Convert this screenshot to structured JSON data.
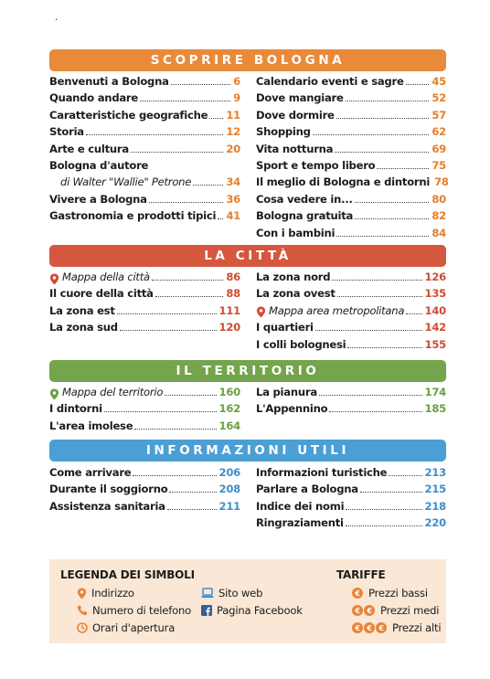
{
  "page_mark": ".",
  "sections": [
    {
      "id": "scoprire",
      "title": "SCOPRIRE BOLOGNA",
      "color": "#e98a3b",
      "left": [
        {
          "label": "Benvenuti a Bologna",
          "page": "6"
        },
        {
          "label": "Quando andare",
          "page": "9"
        },
        {
          "label": "Caratteristiche geografiche",
          "page": "11"
        },
        {
          "label": "Storia",
          "page": "12"
        },
        {
          "label": "Arte e cultura",
          "page": "20"
        },
        {
          "label": "Bologna d'autore",
          "page": ""
        },
        {
          "label": "di Walter \"Wallie\" Petrone",
          "page": "34"
        },
        {
          "label": "Vivere a Bologna",
          "page": "36"
        },
        {
          "label": "Gastronomia e prodotti tipici",
          "page": "41"
        }
      ],
      "right": [
        {
          "label": "Calendario eventi e sagre",
          "page": "45"
        },
        {
          "label": "Dove mangiare",
          "page": "52"
        },
        {
          "label": "Dove dormire",
          "page": "57"
        },
        {
          "label": "Shopping",
          "page": "62"
        },
        {
          "label": "Vita notturna",
          "page": "69"
        },
        {
          "label": "Sport e tempo libero",
          "page": "75"
        },
        {
          "label": "Il meglio di Bologna e dintorni",
          "page": "78"
        },
        {
          "label": "Cosa vedere in...",
          "page": "80"
        },
        {
          "label": "Bologna gratuita",
          "page": "82"
        },
        {
          "label": "Con i bambini",
          "page": "84"
        }
      ]
    },
    {
      "id": "citta",
      "title": "LA CITTÀ",
      "color": "#d4573e",
      "left": [
        {
          "label": "Mappa della città",
          "page": "86"
        },
        {
          "label": "Il cuore della città",
          "page": "88"
        },
        {
          "label": "La zona est",
          "page": "111"
        },
        {
          "label": "La zona sud",
          "page": "120"
        }
      ],
      "right": [
        {
          "label": "La zona nord",
          "page": "126"
        },
        {
          "label": "La zona ovest",
          "page": "135"
        },
        {
          "label": "Mappa area metropolitana",
          "page": "140"
        },
        {
          "label": "I quartieri",
          "page": "142"
        },
        {
          "label": "I colli bolognesi",
          "page": "155"
        }
      ]
    },
    {
      "id": "territorio",
      "title": "IL TERRITORIO",
      "color": "#74a44c",
      "left": [
        {
          "label": "Mappa del territorio",
          "page": "160"
        },
        {
          "label": "I dintorni",
          "page": "162"
        },
        {
          "label": "L'area imolese",
          "page": "164"
        }
      ],
      "right": [
        {
          "label": "La pianura",
          "page": "174"
        },
        {
          "label": "L'Appennino",
          "page": "185"
        }
      ]
    },
    {
      "id": "informazioni",
      "title": "INFORMAZIONI UTILI",
      "color": "#4c9fd4",
      "left": [
        {
          "label": "Come arrivare",
          "page": "206"
        },
        {
          "label": "Durante il soggiorno",
          "page": "208"
        },
        {
          "label": "Assistenza sanitaria",
          "page": "211"
        }
      ],
      "right": [
        {
          "label": "Informazioni turistiche",
          "page": "213"
        },
        {
          "label": "Parlare a Bologna",
          "page": "215"
        },
        {
          "label": "Indice dei nomi",
          "page": "218"
        },
        {
          "label": "Ringraziamenti",
          "page": "220"
        }
      ]
    }
  ],
  "legend": {
    "title": "LEGENDA DEI SIMBOLI",
    "items": [
      {
        "icon": "map-pin-icon",
        "label": "Indirizzo"
      },
      {
        "icon": "phone-icon",
        "label": "Numero di telefono"
      },
      {
        "icon": "clock-icon",
        "label": "Orari d'apertura"
      },
      {
        "icon": "laptop-icon",
        "label": "Sito web"
      },
      {
        "icon": "facebook-icon",
        "label": "Pagina Facebook"
      }
    ],
    "tariffe_title": "TARIFFE",
    "tariffe": [
      {
        "coins": "€",
        "label": "Prezzi bassi"
      },
      {
        "coins": "€€",
        "label": "Prezzi medi"
      },
      {
        "coins": "€€€",
        "label": "Prezzi alti"
      }
    ],
    "accent": "#e8843b",
    "background": "#fbe7d6"
  }
}
